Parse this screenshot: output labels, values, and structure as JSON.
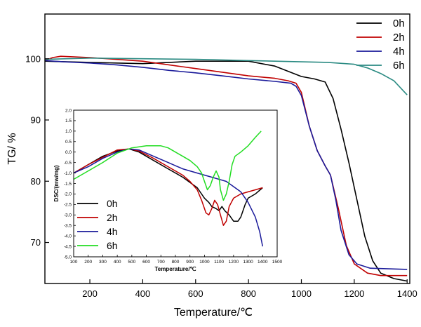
{
  "chart_data": [
    {
      "type": "line",
      "xlabel": "Temperature/℃",
      "ylabel": "TG/ %",
      "xlim": [
        30,
        1410
      ],
      "ylim": [
        63.3,
        107.3
      ],
      "xticks": [
        200,
        400,
        600,
        800,
        1000,
        1200,
        1400
      ],
      "yticks": [
        70,
        80,
        90,
        100
      ],
      "legend": "top-right",
      "series": [
        {
          "name": "0h",
          "color": "#000000",
          "points": [
            [
              30,
              99.6
            ],
            [
              200,
              99.4
            ],
            [
              400,
              99.2
            ],
            [
              600,
              99.6
            ],
            [
              800,
              99.6
            ],
            [
              900,
              98.8
            ],
            [
              1000,
              97.1
            ],
            [
              1050,
              96.7
            ],
            [
              1090,
              96.2
            ],
            [
              1120,
              93.5
            ],
            [
              1150,
              88.5
            ],
            [
              1180,
              83.0
            ],
            [
              1210,
              77.0
            ],
            [
              1240,
              71.0
            ],
            [
              1270,
              67.0
            ],
            [
              1300,
              65.0
            ],
            [
              1350,
              64.1
            ],
            [
              1400,
              63.7
            ]
          ]
        },
        {
          "name": "2h",
          "color": "#c00000",
          "points": [
            [
              30,
              99.7
            ],
            [
              60,
              100.2
            ],
            [
              90,
              100.4
            ],
            [
              200,
              100.2
            ],
            [
              400,
              99.6
            ],
            [
              600,
              98.4
            ],
            [
              800,
              97.2
            ],
            [
              900,
              96.8
            ],
            [
              950,
              96.4
            ],
            [
              980,
              96.0
            ],
            [
              1000,
              94.5
            ],
            [
              1030,
              89.0
            ],
            [
              1060,
              85.0
            ],
            [
              1090,
              82.5
            ],
            [
              1110,
              81.0
            ],
            [
              1140,
              75.5
            ],
            [
              1170,
              69.5
            ],
            [
              1200,
              66.5
            ],
            [
              1250,
              65.0
            ],
            [
              1300,
              64.6
            ],
            [
              1400,
              64.6
            ]
          ]
        },
        {
          "name": "4h",
          "color": "#1a1a9a",
          "points": [
            [
              30,
              99.7
            ],
            [
              100,
              99.5
            ],
            [
              200,
              99.3
            ],
            [
              300,
              99.0
            ],
            [
              400,
              98.6
            ],
            [
              500,
              98.1
            ],
            [
              600,
              97.7
            ],
            [
              700,
              97.2
            ],
            [
              800,
              96.7
            ],
            [
              900,
              96.3
            ],
            [
              960,
              96.0
            ],
            [
              980,
              95.5
            ],
            [
              1000,
              94.0
            ],
            [
              1030,
              89.0
            ],
            [
              1060,
              85.0
            ],
            [
              1090,
              82.5
            ],
            [
              1110,
              81.0
            ],
            [
              1130,
              77.0
            ],
            [
              1150,
              72.0
            ],
            [
              1180,
              68.0
            ],
            [
              1210,
              66.5
            ],
            [
              1260,
              65.8
            ],
            [
              1400,
              65.6
            ]
          ]
        },
        {
          "name": "6h",
          "color": "#2a8a82",
          "points": [
            [
              30,
              99.9
            ],
            [
              200,
              100.1
            ],
            [
              400,
              100.0
            ],
            [
              600,
              99.9
            ],
            [
              800,
              99.7
            ],
            [
              1000,
              99.5
            ],
            [
              1100,
              99.4
            ],
            [
              1200,
              99.1
            ],
            [
              1250,
              98.5
            ],
            [
              1300,
              97.6
            ],
            [
              1350,
              96.4
            ],
            [
              1400,
              94.1
            ]
          ]
        }
      ]
    },
    {
      "type": "line",
      "xlabel": "Temperature/℃",
      "ylabel": "DSC/(mw/mg)",
      "xlim": [
        100,
        1500
      ],
      "ylim": [
        -5.0,
        2.0
      ],
      "xticks": [
        100,
        200,
        300,
        400,
        500,
        600,
        700,
        800,
        900,
        1000,
        1100,
        1200,
        1300,
        1400,
        1500
      ],
      "yticks": [
        -5.0,
        -4.5,
        -4.0,
        -3.5,
        -3.0,
        -2.5,
        -2.0,
        -1.5,
        -1.0,
        -0.5,
        0.0,
        0.5,
        1.0,
        1.5,
        2.0
      ],
      "ytick_labels": [
        "-5.0",
        "-4.5",
        "-4.0",
        "-3.5",
        "-3.0",
        "-2.5",
        "-2.0",
        "-1.5",
        "-1.0",
        "-0.5",
        "0.0",
        "0.5",
        "1.0",
        "1.5",
        "2.0"
      ],
      "legend": "bottom-left",
      "series": [
        {
          "name": "0h",
          "color": "#000000",
          "points": [
            [
              100,
              -1.0
            ],
            [
              200,
              -0.6
            ],
            [
              300,
              -0.2
            ],
            [
              400,
              0.05
            ],
            [
              480,
              0.15
            ],
            [
              550,
              0.0
            ],
            [
              650,
              -0.4
            ],
            [
              750,
              -0.8
            ],
            [
              850,
              -1.2
            ],
            [
              950,
              -1.7
            ],
            [
              1000,
              -2.2
            ],
            [
              1030,
              -2.4
            ],
            [
              1050,
              -2.6
            ],
            [
              1080,
              -2.7
            ],
            [
              1100,
              -2.8
            ],
            [
              1120,
              -2.6
            ],
            [
              1140,
              -2.8
            ],
            [
              1170,
              -3.0
            ],
            [
              1200,
              -3.3
            ],
            [
              1230,
              -3.3
            ],
            [
              1250,
              -3.1
            ],
            [
              1280,
              -2.5
            ],
            [
              1300,
              -2.2
            ],
            [
              1350,
              -2.0
            ],
            [
              1400,
              -1.7
            ]
          ]
        },
        {
          "name": "2h",
          "color": "#c00000",
          "points": [
            [
              100,
              -1.0
            ],
            [
              200,
              -0.6
            ],
            [
              300,
              -0.25
            ],
            [
              400,
              0.1
            ],
            [
              480,
              0.15
            ],
            [
              550,
              0.05
            ],
            [
              650,
              -0.3
            ],
            [
              750,
              -0.7
            ],
            [
              850,
              -1.1
            ],
            [
              900,
              -1.4
            ],
            [
              950,
              -1.8
            ],
            [
              980,
              -2.3
            ],
            [
              1010,
              -2.9
            ],
            [
              1030,
              -3.0
            ],
            [
              1050,
              -2.7
            ],
            [
              1070,
              -2.3
            ],
            [
              1090,
              -2.5
            ],
            [
              1110,
              -3.0
            ],
            [
              1130,
              -3.5
            ],
            [
              1150,
              -3.3
            ],
            [
              1170,
              -2.6
            ],
            [
              1200,
              -2.2
            ],
            [
              1250,
              -2.0
            ],
            [
              1300,
              -1.9
            ],
            [
              1350,
              -1.8
            ],
            [
              1400,
              -1.7
            ]
          ]
        },
        {
          "name": "4h",
          "color": "#1a1a9a",
          "points": [
            [
              100,
              -1.0
            ],
            [
              200,
              -0.7
            ],
            [
              300,
              -0.3
            ],
            [
              400,
              0.0
            ],
            [
              480,
              0.15
            ],
            [
              550,
              0.1
            ],
            [
              650,
              -0.2
            ],
            [
              750,
              -0.5
            ],
            [
              850,
              -0.8
            ],
            [
              950,
              -1.0
            ],
            [
              1050,
              -1.2
            ],
            [
              1150,
              -1.4
            ],
            [
              1250,
              -1.9
            ],
            [
              1300,
              -2.4
            ],
            [
              1350,
              -3.1
            ],
            [
              1380,
              -3.8
            ],
            [
              1400,
              -4.5
            ]
          ]
        },
        {
          "name": "6h",
          "color": "#22dd22",
          "points": [
            [
              100,
              -1.3
            ],
            [
              200,
              -0.9
            ],
            [
              300,
              -0.5
            ],
            [
              400,
              -0.05
            ],
            [
              500,
              0.2
            ],
            [
              600,
              0.3
            ],
            [
              700,
              0.3
            ],
            [
              750,
              0.2
            ],
            [
              800,
              0.0
            ],
            [
              850,
              -0.2
            ],
            [
              900,
              -0.4
            ],
            [
              950,
              -0.7
            ],
            [
              980,
              -1.0
            ],
            [
              1000,
              -1.4
            ],
            [
              1020,
              -1.8
            ],
            [
              1040,
              -1.6
            ],
            [
              1060,
              -1.2
            ],
            [
              1080,
              -0.9
            ],
            [
              1100,
              -1.2
            ],
            [
              1110,
              -1.8
            ],
            [
              1130,
              -2.3
            ],
            [
              1150,
              -2.0
            ],
            [
              1170,
              -1.4
            ],
            [
              1190,
              -0.6
            ],
            [
              1210,
              -0.2
            ],
            [
              1250,
              0.0
            ],
            [
              1300,
              0.3
            ],
            [
              1350,
              0.7
            ],
            [
              1390,
              1.0
            ]
          ]
        }
      ]
    }
  ]
}
